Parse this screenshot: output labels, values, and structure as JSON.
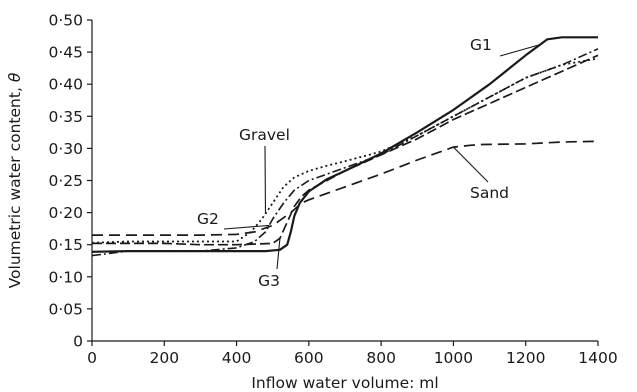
{
  "chart_data": {
    "type": "line",
    "xlabel": "Inflow water volume: ml",
    "ylabel": "Volumetric water content,",
    "ylabel_symbol": "θ",
    "xlim": [
      0,
      1400
    ],
    "ylim": [
      0,
      0.5
    ],
    "x_ticks": [
      0,
      200,
      400,
      600,
      800,
      1000,
      1200,
      1400
    ],
    "x_tick_labels": [
      "0",
      "200",
      "400",
      "600",
      "800",
      "1000",
      "1200",
      "1400"
    ],
    "y_ticks": [
      0,
      0.05,
      0.1,
      0.15,
      0.2,
      0.25,
      0.3,
      0.35,
      0.4,
      0.45,
      0.5
    ],
    "y_tick_labels": [
      "0",
      "0·05",
      "0·10",
      "0·15",
      "0·20",
      "0·25",
      "0·30",
      "0·35",
      "0·40",
      "0·45",
      "0·50"
    ],
    "grid": false,
    "legend": "inline labels",
    "series": [
      {
        "name": "G1",
        "style": "solid",
        "x": [
          0,
          100,
          200,
          300,
          400,
          480,
          520,
          540,
          550,
          560,
          575,
          600,
          650,
          700,
          800,
          900,
          1000,
          1100,
          1200,
          1260,
          1300,
          1400
        ],
        "y": [
          0.139,
          0.14,
          0.14,
          0.14,
          0.14,
          0.14,
          0.142,
          0.15,
          0.17,
          0.195,
          0.215,
          0.233,
          0.252,
          0.265,
          0.292,
          0.325,
          0.36,
          0.4,
          0.445,
          0.47,
          0.473,
          0.473
        ]
      },
      {
        "name": "G2",
        "style": "dash-dot",
        "x": [
          0,
          100,
          200,
          300,
          400,
          450,
          480,
          500,
          530,
          560,
          600,
          700,
          800,
          900,
          1000,
          1100,
          1200,
          1300,
          1400
        ],
        "y": [
          0.133,
          0.14,
          0.14,
          0.14,
          0.145,
          0.155,
          0.17,
          0.19,
          0.215,
          0.235,
          0.25,
          0.27,
          0.29,
          0.32,
          0.35,
          0.38,
          0.41,
          0.43,
          0.455
        ]
      },
      {
        "name": "G3",
        "style": "long-dash",
        "x": [
          0,
          100,
          200,
          300,
          400,
          500,
          520,
          540,
          560,
          580,
          600,
          700,
          800,
          900,
          1000,
          1100,
          1200,
          1300,
          1400
        ],
        "y": [
          0.152,
          0.152,
          0.152,
          0.15,
          0.15,
          0.152,
          0.16,
          0.185,
          0.21,
          0.225,
          0.235,
          0.265,
          0.29,
          0.315,
          0.345,
          0.37,
          0.395,
          0.42,
          0.445
        ]
      },
      {
        "name": "Gravel",
        "style": "dotted",
        "x": [
          0,
          100,
          200,
          300,
          400,
          440,
          470,
          500,
          530,
          560,
          600,
          650,
          700,
          800,
          900,
          1000,
          1100,
          1200,
          1300,
          1400
        ],
        "y": [
          0.153,
          0.155,
          0.155,
          0.155,
          0.155,
          0.17,
          0.19,
          0.215,
          0.24,
          0.255,
          0.265,
          0.273,
          0.28,
          0.295,
          0.32,
          0.35,
          0.38,
          0.41,
          0.43,
          0.44
        ]
      },
      {
        "name": "Sand",
        "style": "dashed",
        "x": [
          0,
          100,
          200,
          300,
          400,
          450,
          500,
          550,
          580,
          600,
          700,
          800,
          900,
          1000,
          1050,
          1080,
          1200,
          1300,
          1400
        ],
        "y": [
          0.165,
          0.165,
          0.165,
          0.165,
          0.166,
          0.17,
          0.18,
          0.2,
          0.215,
          0.22,
          0.24,
          0.26,
          0.282,
          0.302,
          0.305,
          0.306,
          0.307,
          0.31,
          0.311
        ]
      }
    ],
    "annotations": [
      {
        "text": "G1",
        "target_series": "G1",
        "target_x": 1240
      },
      {
        "text": "Gravel",
        "target_series": "Gravel",
        "target_x": 480
      },
      {
        "text": "G2",
        "target_series": "G2",
        "target_x": 490
      },
      {
        "text": "Sand",
        "target_series": "Sand",
        "target_x": 1000
      },
      {
        "text": "G3",
        "target_series": "G3",
        "target_x": 520
      }
    ]
  }
}
